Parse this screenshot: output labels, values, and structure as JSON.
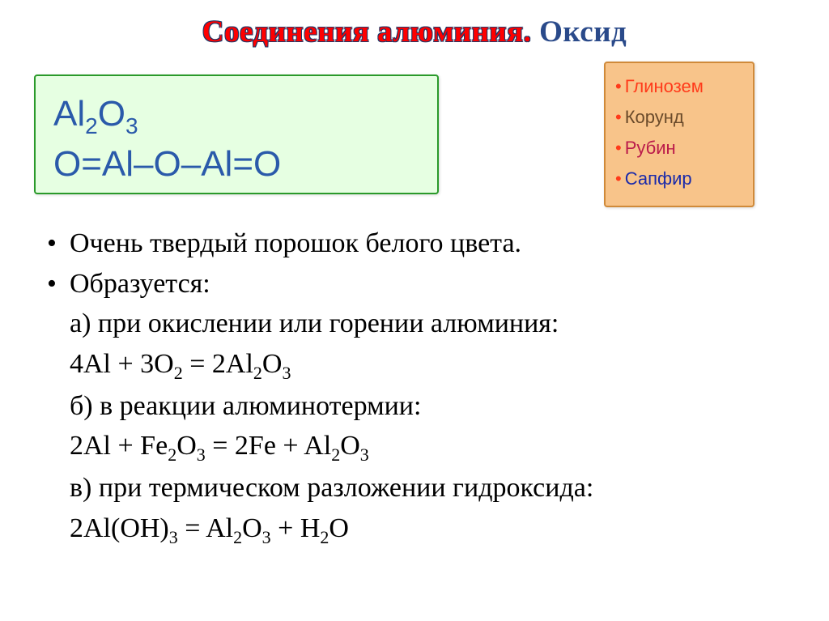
{
  "title": {
    "w1": "Соединения",
    "w2": "алюминия.",
    "w3": "Оксид",
    "fontsize": 37,
    "color_main": "#ff0000",
    "color_last": "#2a4a8a"
  },
  "formula_box": {
    "line1_html": "Al<sub>2</sub>O<sub>3</sub>",
    "line2": "O=Al–O–Al=O",
    "background": "#e6ffe2",
    "border": "#2a9a2a",
    "text_color": "#2a5aaa",
    "fontsize": 44
  },
  "side_box": {
    "background": "#f8c48a",
    "border": "#d08a3a",
    "dot_color": "#ff3a1a",
    "fontsize": 22,
    "items": [
      {
        "label": "Глинозем",
        "color": "#ff3a1a"
      },
      {
        "label": "Корунд",
        "color": "#6a4a2a"
      },
      {
        "label": "Рубин",
        "color": "#ba1a4a"
      },
      {
        "label": "Сапфир",
        "color": "#1a2aaa"
      }
    ]
  },
  "content": {
    "fontsize": 34,
    "text_color": "#000000",
    "bullet1": "Очень твердый порошок белого цвета.",
    "bullet2": "Образуется:",
    "a_label": "а) при окислении или горении алюминия:",
    "a_eq_html": "4Al + 3O<sub>2</sub> = 2Al<sub>2</sub>O<sub>3</sub>",
    "b_label": "б) в реакции алюминотермии:",
    "b_eq_html": "2Al + Fe<sub>2</sub>O<sub>3</sub> = 2Fe + Al<sub>2</sub>O<sub>3</sub>",
    "c_label": "в) при термическом разложении гидроксида:",
    "c_eq_html": "2Al(OH)<sub>3</sub> = Al<sub>2</sub>O<sub>3</sub> + H<sub>2</sub>O"
  }
}
